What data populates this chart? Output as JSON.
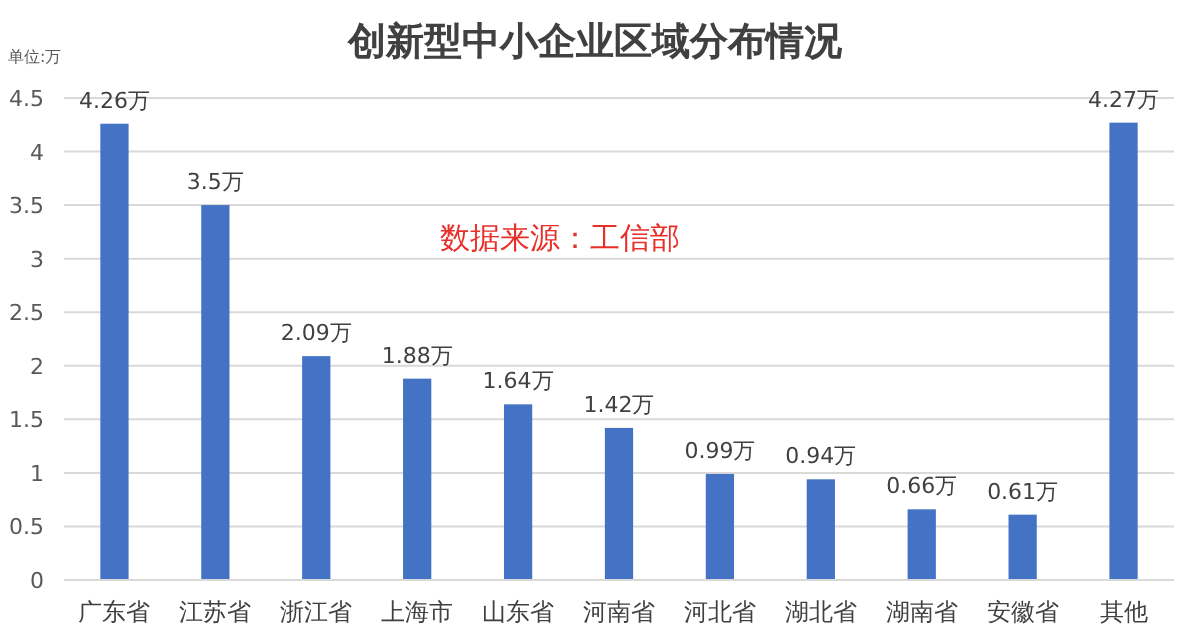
{
  "chart_data": {
    "type": "bar",
    "title": "创新型中小企业区域分布情况",
    "ylabel": "单位:万",
    "categories": [
      "广东省",
      "江苏省",
      "浙江省",
      "上海市",
      "山东省",
      "河南省",
      "河北省",
      "湖北省",
      "湖南省",
      "安徽省",
      "其他"
    ],
    "values": [
      4.26,
      3.5,
      2.09,
      1.88,
      1.64,
      1.42,
      0.99,
      0.94,
      0.66,
      0.61,
      4.27
    ],
    "value_labels": [
      "4.26万",
      "3.5万",
      "2.09万",
      "1.88万",
      "1.64万",
      "1.42万",
      "0.99万",
      "0.94万",
      "0.66万",
      "0.61万",
      "4.27万"
    ],
    "color": "#4472c4",
    "ylim": [
      0,
      4.5
    ],
    "yticks": [
      0,
      0.5,
      1,
      1.5,
      2,
      2.5,
      3,
      3.5,
      4,
      4.5
    ],
    "grid": "y",
    "annotations": [
      "数据来源：工信部"
    ]
  }
}
